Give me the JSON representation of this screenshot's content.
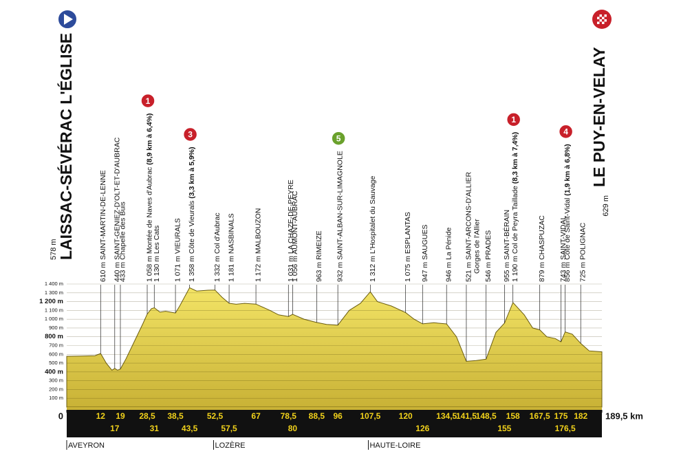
{
  "chart_data": {
    "type": "profile",
    "start": {
      "name": "LAISSAC-SÉVÉRAC L'ÉGLISE",
      "altitude": "578 m"
    },
    "finish": {
      "name": "LE PUY-EN-VELAY",
      "altitude": "629 m"
    },
    "xlim": [
      0,
      189.5
    ],
    "ylim": [
      0,
      1400
    ],
    "xticks": [
      0,
      {
        "value": 189.5,
        "label": "189,5 km"
      }
    ],
    "yticks": [
      {
        "value": 100,
        "label": "100 m"
      },
      {
        "value": 200,
        "label": "200 m"
      },
      {
        "value": 300,
        "label": "300 m"
      },
      {
        "value": 400,
        "label": "400 m",
        "bold": true
      },
      {
        "value": 500,
        "label": "500 m"
      },
      {
        "value": 600,
        "label": "600 m"
      },
      {
        "value": 700,
        "label": "700 m"
      },
      {
        "value": 800,
        "label": "800 m",
        "bold": true
      },
      {
        "value": 900,
        "label": "900 m"
      },
      {
        "value": 1000,
        "label": "1 000 m"
      },
      {
        "value": 1100,
        "label": "1 100 m"
      },
      {
        "value": 1200,
        "label": "1 200 m",
        "bold": true
      },
      {
        "value": 1300,
        "label": "1 300 m"
      },
      {
        "value": 1400,
        "label": "1 400 m"
      }
    ],
    "grid": true,
    "color": "#e9d64b",
    "profile": {
      "km": [
        0,
        5,
        10,
        12,
        14,
        16,
        17,
        18,
        19,
        21,
        24,
        27,
        28.5,
        30,
        31,
        33,
        35,
        38.5,
        40,
        43.5,
        46,
        50,
        52.5,
        55,
        57.5,
        60,
        63,
        67,
        72,
        75,
        78.5,
        80,
        84,
        88.5,
        92,
        96,
        100,
        104,
        107.5,
        110,
        115,
        120,
        123,
        126,
        130,
        134.5,
        138,
        141.5,
        145,
        148.5,
        152,
        155,
        158,
        162,
        165,
        167.5,
        170,
        173,
        175,
        176.5,
        179,
        182,
        185,
        189.5
      ],
      "elevation": [
        578,
        580,
        585,
        610,
        500,
        420,
        440,
        420,
        433,
        550,
        750,
        950,
        1058,
        1120,
        1130,
        1080,
        1090,
        1071,
        1150,
        1358,
        1320,
        1330,
        1332,
        1250,
        1181,
        1170,
        1180,
        1172,
        1100,
        1050,
        1031,
        1056,
        1000,
        963,
        940,
        932,
        1100,
        1180,
        1312,
        1200,
        1150,
        1075,
        1000,
        947,
        960,
        946,
        800,
        521,
        530,
        546,
        850,
        955,
        1190,
        1050,
        900,
        879,
        800,
        780,
        743,
        856,
        830,
        725,
        640,
        629
      ]
    },
    "waypoints": [
      {
        "km": 12,
        "km_label": "12",
        "text": "610 m SAINT-MARTIN-DE-LENNE"
      },
      {
        "km": 17,
        "km_label": "17",
        "text": "440 m SAINT-GENIEZ-D'OLT-ET-D'AUBRAC"
      },
      {
        "km": 19,
        "km_label": "19",
        "text": "433 m Chapelle des Buis"
      },
      {
        "km": 28.5,
        "km_label": "28,5",
        "text": "1 058 m Montée de Naves d'Aubrac",
        "climb": "(8,9 km à 6,4%)",
        "category": "1",
        "badge": "#c8202a"
      },
      {
        "km": 31,
        "km_label": "31",
        "text": "1 130 m Les Cats"
      },
      {
        "km": 38.5,
        "km_label": "38,5",
        "text": "1 071 m VIEURALS"
      },
      {
        "km": 43.5,
        "km_label": "43,5",
        "text": "1 358 m Côte de Vieurals",
        "climb": "(3,3 km à 5,9%)",
        "category": "3",
        "badge": "#c8202a"
      },
      {
        "km": 52.5,
        "km_label": "52,5",
        "text": "1 332 m Col d'Aubrac"
      },
      {
        "km": 57.5,
        "km_label": "57,5",
        "text": "1 181 m NASBINALS"
      },
      {
        "km": 67,
        "km_label": "67",
        "text": "1 172 m MALBOUZON"
      },
      {
        "km": 78.5,
        "km_label": "78,5",
        "text": "1 031 m LA CHAZE-DE-PEYRE"
      },
      {
        "km": 80,
        "km_label": "80",
        "text": "1 056 m AUMONT-AUBRAC"
      },
      {
        "km": 88.5,
        "km_label": "88,5",
        "text": "963 m RIMEIZE"
      },
      {
        "km": 96,
        "km_label": "96",
        "text": "932 m SAINT-ALBAN-SUR-LIMAGNOLE",
        "category": "5",
        "badge": "#6aa12c"
      },
      {
        "km": 107.5,
        "km_label": "107,5",
        "text": "1 312 m L'Hospitalet du Sauvage"
      },
      {
        "km": 120,
        "km_label": "120",
        "text": "1 075 m ESPLANTAS"
      },
      {
        "km": 126,
        "km_label": "126",
        "text": "947 m SAUGUES"
      },
      {
        "km": 134.5,
        "km_label": "134,5",
        "text": "946 m La Pénide"
      },
      {
        "km": 141.5,
        "km_label": "141,5",
        "text": "521 m SAINT-ARCONS-D'ALLIER",
        "note": "Gorges de l'Allier"
      },
      {
        "km": 148.5,
        "km_label": "148,5",
        "text": "546 m PRADES"
      },
      {
        "km": 155,
        "km_label": "155",
        "text": "955 m SAINT-BÉRAIN"
      },
      {
        "km": 158,
        "km_label": "158",
        "text": "1 190 m Col de Peyra Taillade",
        "climb": "(8,3 km à 7,4%)",
        "category": "1",
        "badge": "#c8202a"
      },
      {
        "km": 167.5,
        "km_label": "167,5",
        "text": "879 m CHASPUZAC"
      },
      {
        "km": 175,
        "km_label": "175",
        "text": "743 m SAINT-VIDAL"
      },
      {
        "km": 176.5,
        "km_label": "176,5",
        "text": "856 m Côte de Saint-Vidal",
        "climb": "(1,9 km à 6,8%)",
        "category": "4",
        "badge": "#c8202a"
      },
      {
        "km": 182,
        "km_label": "182",
        "text": "725 m POLIGNAC"
      }
    ],
    "regions": [
      {
        "km": 0,
        "name": "AVEYRON"
      },
      {
        "km": 52,
        "name": "LOZÈRE"
      },
      {
        "km": 106.8,
        "name": "HAUTE-LOIRE"
      }
    ]
  }
}
